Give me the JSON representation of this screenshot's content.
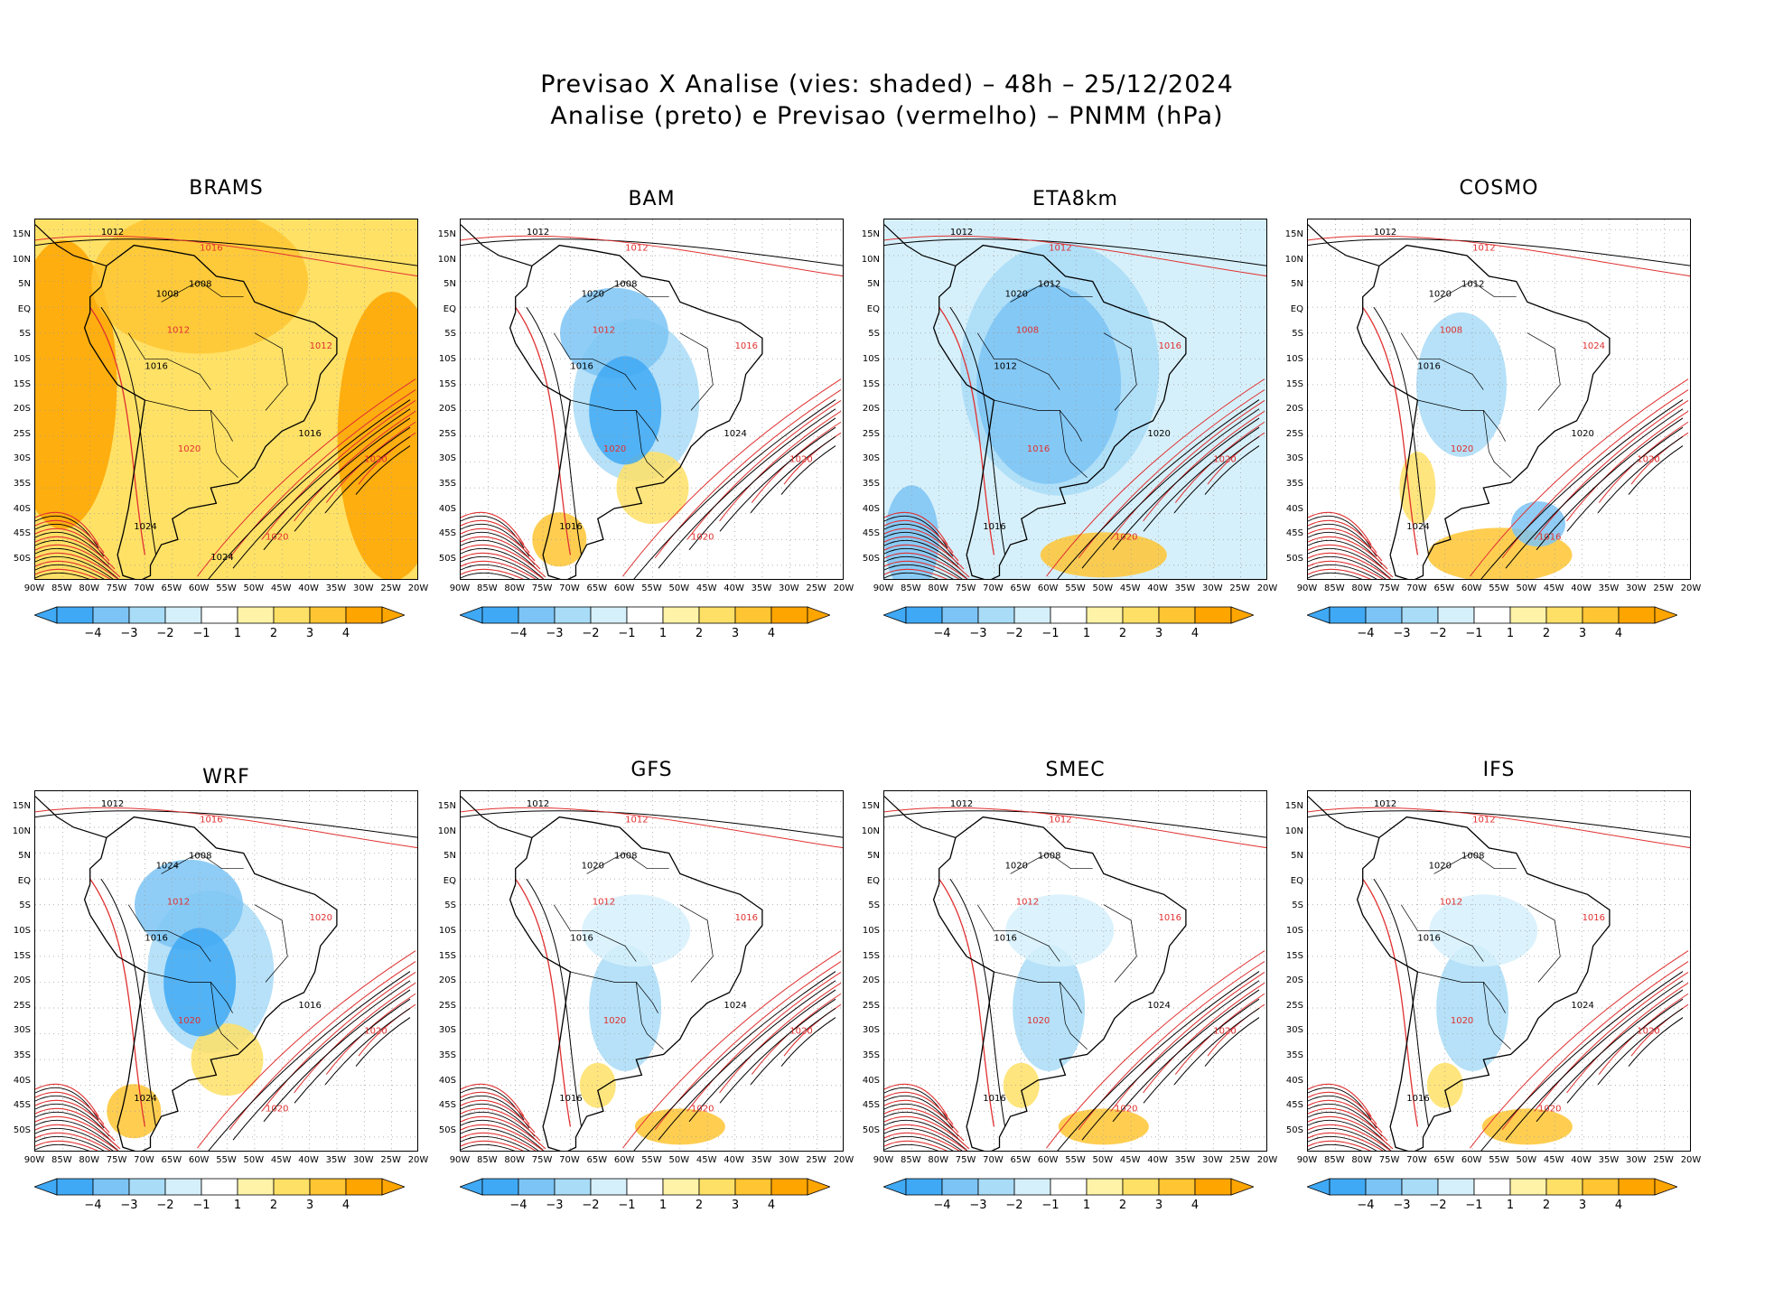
{
  "title": {
    "line1": "Previsao X Analise (vies: shaded) – 48h – 25/12/2024",
    "line2": "Analise (preto) e Previsao (vermelho) – PNMM (hPa)"
  },
  "lat_ticks": [
    "15N",
    "10N",
    "5N",
    "EQ",
    "5S",
    "10S",
    "15S",
    "20S",
    "25S",
    "30S",
    "35S",
    "40S",
    "45S",
    "50S"
  ],
  "lon_ticks": [
    "90W",
    "85W",
    "80W",
    "75W",
    "70W",
    "65W",
    "60W",
    "55W",
    "50W",
    "45W",
    "40W",
    "35W",
    "30W",
    "25W",
    "20W"
  ],
  "colorbar": {
    "labels": [
      "−4",
      "−3",
      "−2",
      "−1",
      "1",
      "2",
      "3",
      "4"
    ],
    "colors": [
      "#3fa9f5",
      "#7cc4f5",
      "#a9dcf7",
      "#d6f0fb",
      "#ffffff",
      "#fff3a8",
      "#ffe066",
      "#ffc533",
      "#ffa500"
    ]
  },
  "colors": {
    "analysis": "#000000",
    "forecast": "#e03030"
  },
  "panels": [
    {
      "name": "BRAMS",
      "bias": "warm",
      "labels": [
        "1012",
        "1016",
        "1008",
        "1012",
        "1016",
        "1020",
        "1024",
        "1020",
        "1016",
        "1012",
        "1008",
        "1020",
        "1024"
      ]
    },
    {
      "name": "BAM",
      "bias": "cool",
      "labels": [
        "1012",
        "1012",
        "1008",
        "1012",
        "1016",
        "1020",
        "1016",
        "1020",
        "1024",
        "1016",
        "1020",
        "1020"
      ]
    },
    {
      "name": "ETA8km",
      "bias": "cold",
      "labels": [
        "1012",
        "1012",
        "1012",
        "1008",
        "1012",
        "1016",
        "1016",
        "1020",
        "1020",
        "1016",
        "1020",
        "1020"
      ]
    },
    {
      "name": "COSMO",
      "bias": "mixed",
      "labels": [
        "1012",
        "1012",
        "1012",
        "1008",
        "1016",
        "1020",
        "1024",
        "1016",
        "1020",
        "1024",
        "1020",
        "1020"
      ]
    },
    {
      "name": "WRF",
      "bias": "cool",
      "labels": [
        "1012",
        "1016",
        "1008",
        "1012",
        "1016",
        "1020",
        "1024",
        "1020",
        "1016",
        "1020",
        "1024",
        "1020"
      ]
    },
    {
      "name": "GFS",
      "bias": "light",
      "labels": [
        "1012",
        "1012",
        "1008",
        "1012",
        "1016",
        "1020",
        "1016",
        "1020",
        "1024",
        "1016",
        "1020",
        "1020"
      ]
    },
    {
      "name": "SMEC",
      "bias": "light",
      "labels": [
        "1012",
        "1012",
        "1008",
        "1012",
        "1016",
        "1020",
        "1016",
        "1020",
        "1024",
        "1016",
        "1020",
        "1020"
      ]
    },
    {
      "name": "IFS",
      "bias": "light",
      "labels": [
        "1012",
        "1012",
        "1008",
        "1012",
        "1016",
        "1020",
        "1016",
        "1020",
        "1024",
        "1016",
        "1020",
        "1020"
      ]
    }
  ]
}
